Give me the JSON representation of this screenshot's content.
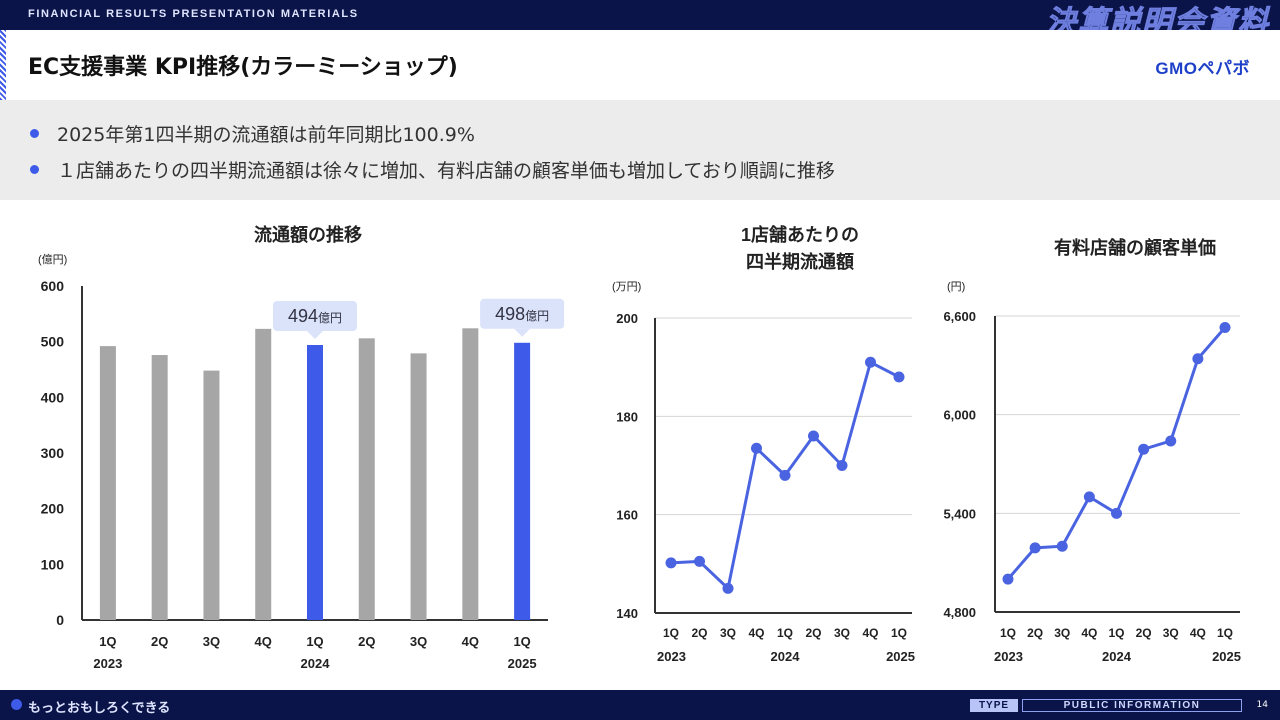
{
  "header": {
    "subtitle": "FINANCIAL RESULTS PRESENTATION MATERIALS",
    "big_title": "決算説明会資料"
  },
  "slide": {
    "title": "EC支援事業 KPI推移(カラーミーショップ)",
    "logo": "GMOペパボ"
  },
  "bullets": [
    "2025年第1四半期の流通額は前年同期比100.9%",
    "１店舗あたりの四半期流通額は徐々に増加、有料店舗の顧客単価も増加しており順調に推移"
  ],
  "footer": {
    "slogan": "もっとおもしろくできる",
    "type_label": "TYPE",
    "info_label": "PUBLIC INFORMATION",
    "page_number": "14"
  },
  "colors": {
    "highlight": "#3d5ae8",
    "gray_bar": "#a6a6a6",
    "line": "#4a63e0",
    "callout": "#dbe3fb",
    "navy": "#0b1448"
  },
  "chart_data": [
    {
      "type": "bar",
      "title": "流通額の推移",
      "unit": "(億円)",
      "categories": [
        "1Q",
        "2Q",
        "3Q",
        "4Q",
        "1Q",
        "2Q",
        "3Q",
        "4Q",
        "1Q"
      ],
      "years": [
        "2023",
        "",
        "",
        "",
        "2024",
        "",
        "",
        "",
        "2025"
      ],
      "values": [
        492,
        476,
        448,
        523,
        494,
        506,
        479,
        524,
        498
      ],
      "highlighted": [
        4,
        8
      ],
      "ylim": [
        0,
        600
      ],
      "yticks": [
        "0",
        "100",
        "200",
        "300",
        "400",
        "500",
        "600"
      ],
      "callouts": [
        {
          "index": 4,
          "value": "494",
          "unit": "億円"
        },
        {
          "index": 8,
          "value": "498",
          "unit": "億円"
        }
      ]
    },
    {
      "type": "line",
      "title_lines": [
        "1店舗あたりの",
        "四半期流通額"
      ],
      "unit": "(万円)",
      "categories": [
        "1Q",
        "2Q",
        "3Q",
        "4Q",
        "1Q",
        "2Q",
        "3Q",
        "4Q",
        "1Q"
      ],
      "years": [
        "2023",
        "",
        "",
        "",
        "2024",
        "",
        "",
        "",
        "2025"
      ],
      "values": [
        150.2,
        150.5,
        145.0,
        173.5,
        168.0,
        176.0,
        170.0,
        191.0,
        188.0
      ],
      "ylim": [
        140,
        200
      ],
      "yticks": [
        "140",
        "160",
        "180",
        "200"
      ]
    },
    {
      "type": "line",
      "title": "有料店舗の顧客単価",
      "unit": "(円)",
      "categories": [
        "1Q",
        "2Q",
        "3Q",
        "4Q",
        "1Q",
        "2Q",
        "3Q",
        "4Q",
        "1Q"
      ],
      "years": [
        "2023",
        "",
        "",
        "",
        "2024",
        "",
        "",
        "",
        "2025"
      ],
      "values": [
        5000,
        5190,
        5200,
        5500,
        5400,
        5790,
        5840,
        6340,
        6530
      ],
      "ylim": [
        4800,
        6600
      ],
      "yticks": [
        "4,800",
        "5,400",
        "6,000",
        "6,600"
      ]
    }
  ]
}
